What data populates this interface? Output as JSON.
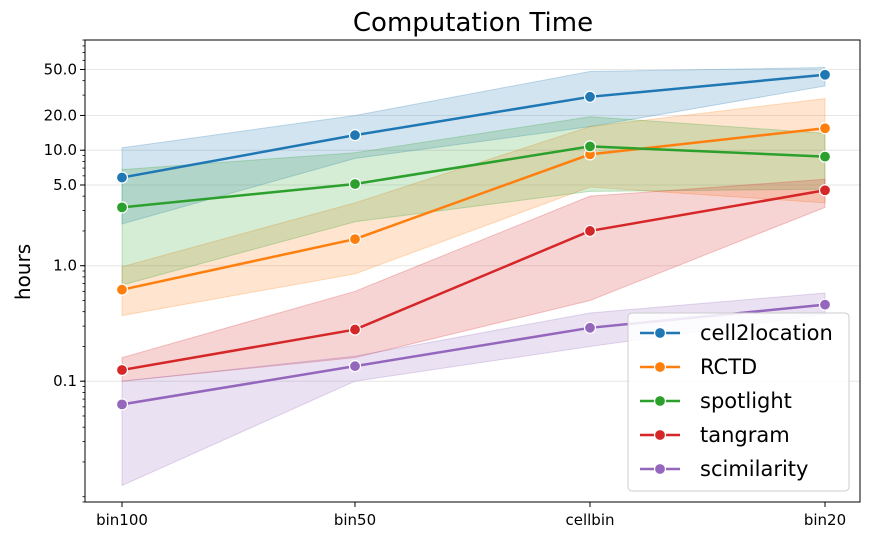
{
  "chart_data": {
    "type": "line",
    "title": "Computation Time",
    "xlabel": "",
    "ylabel": "hours",
    "y_scale": "log",
    "ylim": [
      0.009,
      90
    ],
    "y_ticks": [
      {
        "value": 0.1,
        "label": "0.1"
      },
      {
        "value": 1,
        "label": "1.0"
      },
      {
        "value": 5,
        "label": "5.0"
      },
      {
        "value": 10,
        "label": "10.0"
      },
      {
        "value": 20,
        "label": "20.0"
      },
      {
        "value": 50,
        "label": "50.0"
      }
    ],
    "grid": true,
    "legend_position": "bottom-right",
    "categories": [
      "bin100",
      "bin50",
      "cellbin",
      "bin20"
    ],
    "series": [
      {
        "name": "cell2location",
        "color": "#1f77b4",
        "values": [
          5.8,
          13.5,
          29,
          45
        ],
        "lower": [
          2.3,
          8.5,
          16,
          36
        ],
        "upper": [
          10.5,
          20,
          48,
          52
        ]
      },
      {
        "name": "RCTD",
        "color": "#ff7f0e",
        "values": [
          0.62,
          1.7,
          9.2,
          15.5
        ],
        "lower": [
          0.37,
          0.85,
          4.8,
          3.5
        ],
        "upper": [
          0.98,
          3.5,
          16,
          28
        ]
      },
      {
        "name": "spotlight",
        "color": "#2ca02c",
        "values": [
          3.2,
          5.1,
          10.8,
          8.8
        ],
        "lower": [
          0.68,
          2.4,
          4.4,
          4.6
        ],
        "upper": [
          6.8,
          9.5,
          19.5,
          14
        ]
      },
      {
        "name": "tangram",
        "color": "#d62728",
        "values": [
          0.125,
          0.28,
          2.0,
          4.5
        ],
        "lower": [
          0.1,
          0.16,
          0.5,
          3.2
        ],
        "upper": [
          0.16,
          0.6,
          4.0,
          5.6
        ]
      },
      {
        "name": "scimilarity",
        "color": "#9467bd",
        "values": [
          0.063,
          0.135,
          0.29,
          0.46
        ],
        "lower": [
          0.0125,
          0.1,
          0.2,
          0.38
        ],
        "upper": [
          0.1,
          0.165,
          0.39,
          0.58
        ]
      }
    ]
  }
}
